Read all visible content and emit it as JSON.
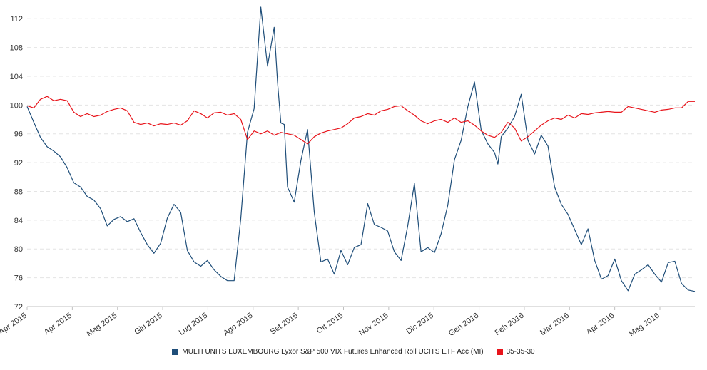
{
  "chart_data": {
    "type": "line",
    "title": "",
    "xlabel": "",
    "ylabel": "",
    "ylim": [
      72,
      114
    ],
    "grid": true,
    "legend_position": "bottom-center",
    "y_ticks": [
      72,
      76,
      80,
      84,
      88,
      92,
      96,
      100,
      104,
      108,
      112
    ],
    "x_ticks": [
      "Apr 2015",
      "Apr 2015",
      "Mag 2015",
      "Giu 2015",
      "Lug 2015",
      "Ago 2015",
      "Set 2015",
      "Ott 2015",
      "Nov 2015",
      "Dic 2015",
      "Gen 2016",
      "Feb 2016",
      "Mar 2016",
      "Apr 2016",
      "Mag 2016"
    ],
    "series": [
      {
        "name": "MULTI UNITS LUXEMBOURG Lyxor S&P 500 VIX Futures Enhanced Roll UCITS ETF Acc (MI)",
        "color": "#1f4e79",
        "x": [
          0,
          0.01,
          0.02,
          0.03,
          0.04,
          0.05,
          0.06,
          0.07,
          0.08,
          0.09,
          0.1,
          0.11,
          0.12,
          0.13,
          0.14,
          0.15,
          0.16,
          0.17,
          0.18,
          0.19,
          0.2,
          0.21,
          0.22,
          0.23,
          0.24,
          0.25,
          0.26,
          0.27,
          0.28,
          0.29,
          0.3,
          0.31,
          0.32,
          0.33,
          0.34,
          0.35,
          0.36,
          0.37,
          0.375,
          0.38,
          0.385,
          0.39,
          0.4,
          0.41,
          0.42,
          0.43,
          0.44,
          0.45,
          0.46,
          0.47,
          0.48,
          0.49,
          0.5,
          0.51,
          0.52,
          0.53,
          0.54,
          0.55,
          0.56,
          0.57,
          0.58,
          0.59,
          0.6,
          0.61,
          0.62,
          0.63,
          0.64,
          0.65,
          0.66,
          0.67,
          0.68,
          0.69,
          0.7,
          0.705,
          0.71,
          0.72,
          0.73,
          0.74,
          0.75,
          0.76,
          0.77,
          0.78,
          0.79,
          0.8,
          0.81,
          0.82,
          0.83,
          0.84,
          0.85,
          0.86,
          0.87,
          0.88,
          0.89,
          0.9,
          0.91,
          0.92,
          0.93,
          0.94,
          0.95,
          0.96,
          0.97,
          0.98,
          0.99,
          1.0
        ],
        "values": [
          99.8,
          97.6,
          95.5,
          94.2,
          93.6,
          92.8,
          91.3,
          89.2,
          88.6,
          87.3,
          86.8,
          85.6,
          83.2,
          84.1,
          84.5,
          83.8,
          84.2,
          82.3,
          80.6,
          79.4,
          80.8,
          84.3,
          86.2,
          85.1,
          79.8,
          78.2,
          77.6,
          78.4,
          77.1,
          76.2,
          75.6,
          75.6,
          84.2,
          96.2,
          99.5,
          113.6,
          105.4,
          110.8,
          103.2,
          97.5,
          97.3,
          88.6,
          86.5,
          92.3,
          96.6,
          85.1,
          78.2,
          78.6,
          76.5,
          79.8,
          77.8,
          80.2,
          80.6,
          86.3,
          83.4,
          83.0,
          82.5,
          79.6,
          78.4,
          83.2,
          89.1,
          79.6,
          80.2,
          79.5,
          82.1,
          86.1,
          92.4,
          95.1,
          99.8,
          103.2,
          96.5,
          94.6,
          93.4,
          91.8,
          95.6,
          96.8,
          98.4,
          101.5,
          95.1,
          93.2,
          95.8,
          94.3,
          88.6,
          86.2,
          84.8,
          82.7,
          80.6,
          82.8,
          78.4,
          75.8,
          76.3,
          78.6,
          75.6,
          74.2,
          76.5,
          77.1,
          77.8,
          76.5,
          75.4,
          78.1,
          78.3,
          75.2,
          74.3,
          74.1
        ],
        "smooth": true
      },
      {
        "name": "35-35-30",
        "color": "#e8141b",
        "x": [
          0,
          0.01,
          0.02,
          0.03,
          0.04,
          0.05,
          0.06,
          0.07,
          0.08,
          0.09,
          0.1,
          0.11,
          0.12,
          0.13,
          0.14,
          0.15,
          0.16,
          0.17,
          0.18,
          0.19,
          0.2,
          0.21,
          0.22,
          0.23,
          0.24,
          0.25,
          0.26,
          0.27,
          0.28,
          0.29,
          0.3,
          0.31,
          0.32,
          0.33,
          0.34,
          0.35,
          0.36,
          0.37,
          0.38,
          0.39,
          0.4,
          0.41,
          0.42,
          0.43,
          0.44,
          0.45,
          0.46,
          0.47,
          0.48,
          0.49,
          0.5,
          0.51,
          0.52,
          0.53,
          0.54,
          0.55,
          0.56,
          0.57,
          0.58,
          0.59,
          0.6,
          0.61,
          0.62,
          0.63,
          0.64,
          0.65,
          0.66,
          0.67,
          0.68,
          0.69,
          0.7,
          0.71,
          0.72,
          0.73,
          0.74,
          0.75,
          0.76,
          0.77,
          0.78,
          0.79,
          0.8,
          0.81,
          0.82,
          0.83,
          0.84,
          0.85,
          0.86,
          0.87,
          0.88,
          0.89,
          0.9,
          0.91,
          0.92,
          0.93,
          0.94,
          0.95,
          0.96,
          0.97,
          0.98,
          0.99,
          1.0
        ],
        "values": [
          99.9,
          99.6,
          100.8,
          101.2,
          100.6,
          100.8,
          100.6,
          99.0,
          98.4,
          98.8,
          98.4,
          98.6,
          99.1,
          99.4,
          99.6,
          99.2,
          97.6,
          97.3,
          97.5,
          97.1,
          97.4,
          97.3,
          97.5,
          97.2,
          97.8,
          99.2,
          98.8,
          98.2,
          98.9,
          99.0,
          98.6,
          98.8,
          98.0,
          95.2,
          96.4,
          96.0,
          96.4,
          95.8,
          96.2,
          96.0,
          95.8,
          95.2,
          94.6,
          95.6,
          96.1,
          96.4,
          96.6,
          96.8,
          97.4,
          98.2,
          98.4,
          98.8,
          98.6,
          99.2,
          99.4,
          99.8,
          99.9,
          99.2,
          98.6,
          97.8,
          97.4,
          97.8,
          98.0,
          97.6,
          98.2,
          97.6,
          97.8,
          97.2,
          96.4,
          95.8,
          95.5,
          96.2,
          97.6,
          96.8,
          95.0,
          95.6,
          96.4,
          97.2,
          97.8,
          98.2,
          98.0,
          98.6,
          98.2,
          98.8,
          98.7,
          98.9,
          99.0,
          99.1,
          99.0,
          99.0,
          99.8,
          99.6,
          99.4,
          99.2,
          99.0,
          99.3,
          99.4,
          99.6,
          99.6,
          100.5,
          100.5
        ]
      }
    ]
  }
}
